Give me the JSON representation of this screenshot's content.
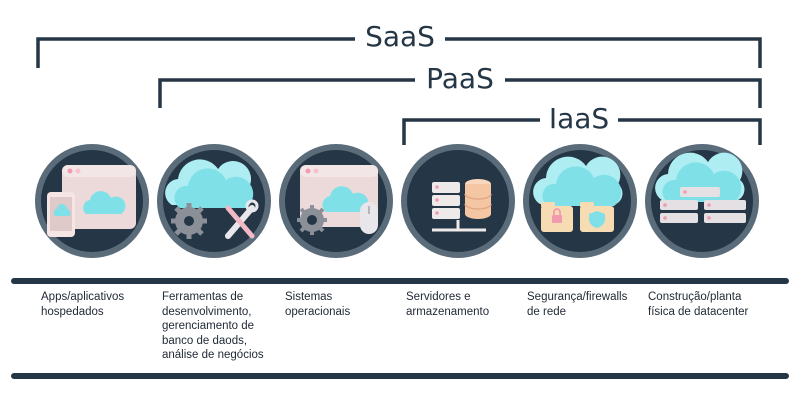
{
  "brackets": [
    {
      "label": "SaaS"
    },
    {
      "label": "PaaS"
    },
    {
      "label": "IaaS"
    }
  ],
  "icons": [
    {
      "name": "hosted-apps-icon"
    },
    {
      "name": "dev-tools-icon"
    },
    {
      "name": "operating-systems-icon"
    },
    {
      "name": "servers-storage-icon"
    },
    {
      "name": "network-security-icon"
    },
    {
      "name": "datacenter-icon"
    }
  ],
  "captions": [
    "Apps/aplicativos\nhospedados",
    "Ferramentas de\ndesenvolvimento,\ngerenciamento de\nbanco de daods,\nanálise de negócios",
    "Sistemas\noperacionais",
    "Servidores e\narmazenamento",
    "Segurança/firewalls\nde rede",
    "Construção/planta\nfísica de datacenter"
  ],
  "colors": {
    "navy": "#253746",
    "cloud": "#7fe0e7",
    "cloud_light": "#aeeef2",
    "window": "#ecd9d9",
    "gear": "#8a8f98",
    "storage": "#f4c6a3",
    "folder": "#f7dcb3",
    "accent_pink": "#f29ab0"
  }
}
